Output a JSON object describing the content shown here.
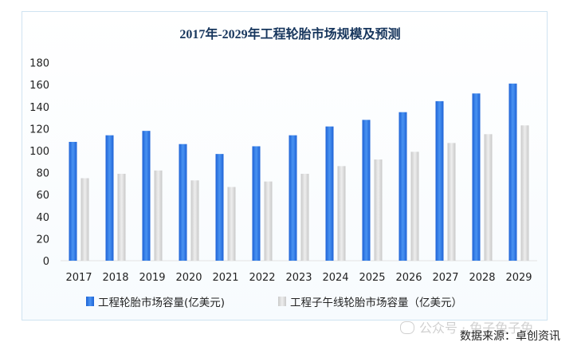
{
  "chart_data": {
    "type": "bar",
    "title": "2017年-2029年工程轮胎市场规模及预测",
    "categories": [
      "2017",
      "2018",
      "2019",
      "2020",
      "2021",
      "2022",
      "2023",
      "2024",
      "2025",
      "2026",
      "2027",
      "2028",
      "2029"
    ],
    "series": [
      {
        "name": "工程轮胎市场容量(亿美元)",
        "color": "#2f7be6",
        "values": [
          108,
          114,
          118,
          106,
          97,
          104,
          114,
          122,
          128,
          135,
          145,
          152,
          161
        ]
      },
      {
        "name": "工程子午线轮胎市场容量（亿美元）",
        "color": "#d9d9d9",
        "values": [
          75,
          79,
          82,
          73,
          67,
          72,
          79,
          86,
          92,
          99,
          107,
          115,
          123
        ]
      }
    ],
    "ylim": [
      0,
      180
    ],
    "yticks": [
      0,
      20,
      40,
      60,
      80,
      100,
      120,
      140,
      160,
      180
    ],
    "xlabel": "",
    "ylabel": "",
    "grid": false,
    "legend_position": "bottom"
  },
  "watermark": "公众号 · 兔子兔子兔",
  "source": "数据来源：卓创资讯"
}
